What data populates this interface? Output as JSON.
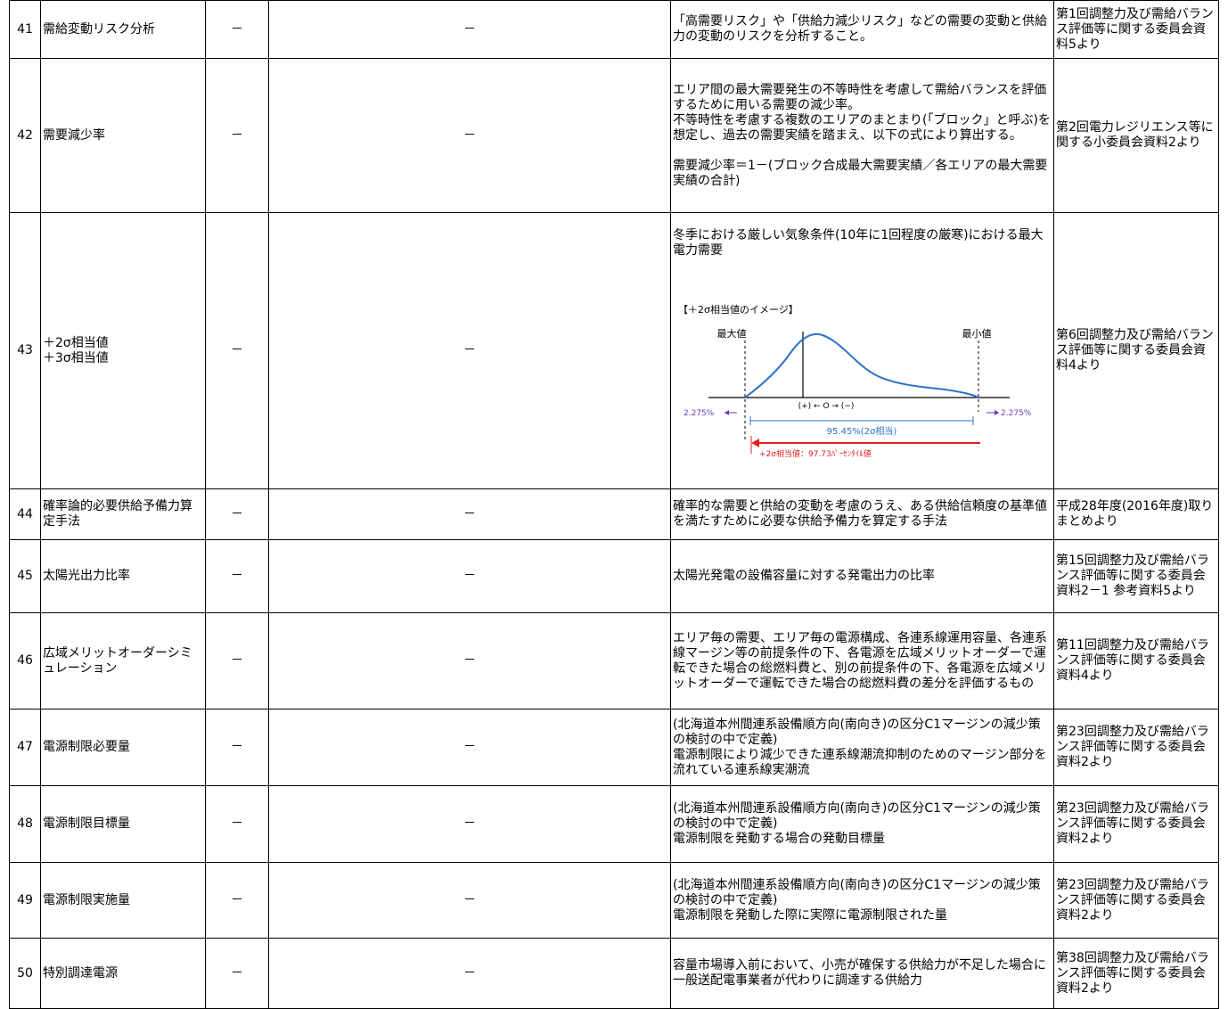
{
  "rows": [
    {
      "no": "41",
      "term": "需給変動リスク分析",
      "col3": "－",
      "col4": "－",
      "definition": "「高需要リスク」や「供給力減少リスク」などの需要の変動と供給力の変動のリスクを分析すること。",
      "source": "第1回調整力及び需給バランス評価等に関する委員会資料5より"
    },
    {
      "no": "42",
      "term": "需要減少率",
      "col3": "－",
      "col4": "－",
      "definition": "エリア間の最大需要発生の不等時性を考慮して需給バランスを評価するために用いる需要の減少率。\n不等時性を考慮する複数のエリアのまとまり(「ブロック」と呼ぶ)を想定し、過去の需要実績を踏まえ、以下の式により算出する。\n\n需要減少率＝1－(ブロック合成最大需要実績／各エリアの最大需要実績の合計)",
      "source": "第2回電力レジリエンス等に関する小委員会資料2より"
    },
    {
      "no": "43",
      "term": "＋2σ相当値\n＋3σ相当値",
      "col3": "－",
      "col4": "－",
      "definition": "冬季における厳しい気象条件(10年に1回程度の厳寒)における最大電力需要",
      "source": "第6回調整力及び需給バランス評価等に関する委員会資料4より",
      "figure": {
        "title": "【＋2σ相当値のイメージ】",
        "max_label": "最大値",
        "min_label": "最小値",
        "axis_label": "(+) ← O → (−)",
        "left_pct": "2.275%",
        "right_pct": "2.275%",
        "band_label": "95.45%(2σ相当)",
        "red_label": "+2σ相当値：97.73ﾊﾟｰｾﾝﾀｲﾙ値"
      }
    },
    {
      "no": "44",
      "term": "確率論的必要供給予備力算定手法",
      "col3": "－",
      "col4": "－",
      "definition": "確率的な需要と供給の変動を考慮のうえ、ある供給信頼度の基準値を満たすために必要な供給予備力を算定する手法",
      "source": "平成28年度(2016年度)取りまとめより"
    },
    {
      "no": "45",
      "term": "太陽光出力比率",
      "col3": "－",
      "col4": "－",
      "definition": "太陽光発電の設備容量に対する発電出力の比率",
      "source": "第15回調整力及び需給バランス評価等に関する委員会資料2－1 参考資料5より"
    },
    {
      "no": "46",
      "term": "広域メリットオーダーシミュレーション",
      "col3": "－",
      "col4": "－",
      "definition": "エリア毎の需要、エリア毎の電源構成、各連系線運用容量、各連系線マージン等の前提条件の下、各電源を広域メリットオーダーで運転できた場合の総燃料費と、別の前提条件の下、各電源を広域メリットオーダーで運転できた場合の総燃料費の差分を評価するもの",
      "source": "第11回調整力及び需給バランス評価等に関する委員会資料4より"
    },
    {
      "no": "47",
      "term": "電源制限必要量",
      "col3": "－",
      "col4": "－",
      "definition": "(北海道本州間連系設備順方向(南向き)の区分C1マージンの減少策の検討の中で定義)\n電源制限により減少できた連系線潮流抑制のためのマージン部分を流れている連系線実潮流",
      "source": "第23回調整力及び需給バランス評価等に関する委員会資料2より"
    },
    {
      "no": "48",
      "term": "電源制限目標量",
      "col3": "－",
      "col4": "－",
      "definition": "(北海道本州間連系設備順方向(南向き)の区分C1マージンの減少策の検討の中で定義)\n電源制限を発動する場合の発動目標量",
      "source": "第23回調整力及び需給バランス評価等に関する委員会資料2より"
    },
    {
      "no": "49",
      "term": "電源制限実施量",
      "col3": "－",
      "col4": "－",
      "definition": "(北海道本州間連系設備順方向(南向き)の区分C1マージンの減少策の検討の中で定義)\n電源制限を発動した際に実際に電源制限された量",
      "source": "第23回調整力及び需給バランス評価等に関する委員会資料2より"
    },
    {
      "no": "50",
      "term": "特別調達電源",
      "col3": "－",
      "col4": "－",
      "definition": "容量市場導入前において、小売が確保する供給力が不足した場合に一般送配電事業者が代わりに調達する供給力",
      "source": "第38回調整力及び需給バランス評価等に関する委員会資料2より"
    }
  ]
}
